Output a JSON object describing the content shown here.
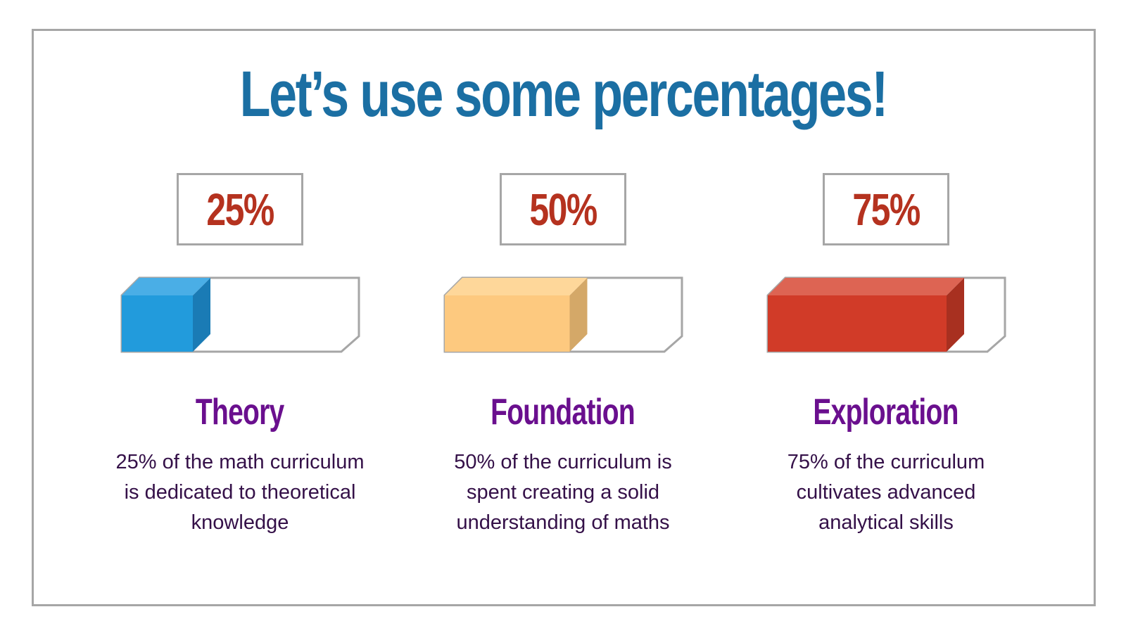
{
  "title": "Let’s use some percentages!",
  "items": [
    {
      "percent_label": "25%",
      "value": 0.25,
      "heading": "Theory",
      "description": "25% of the math curriculum is dedicated to theoretical knowledge",
      "colors": {
        "front": "#229bdc",
        "top": "#4aaee6",
        "side": "#1a7bb5"
      }
    },
    {
      "percent_label": "50%",
      "value": 0.5,
      "heading": "Foundation",
      "description": "50% of the curriculum is spent creating a solid understanding of maths",
      "colors": {
        "front": "#fdc97f",
        "top": "#fed79a",
        "side": "#d4a868"
      }
    },
    {
      "percent_label": "75%",
      "value": 0.75,
      "heading": "Exploration",
      "description": "75% of the curriculum cultivates advanced analytical skills",
      "colors": {
        "front": "#d13b28",
        "top": "#dd6453",
        "side": "#a83020"
      }
    }
  ]
}
